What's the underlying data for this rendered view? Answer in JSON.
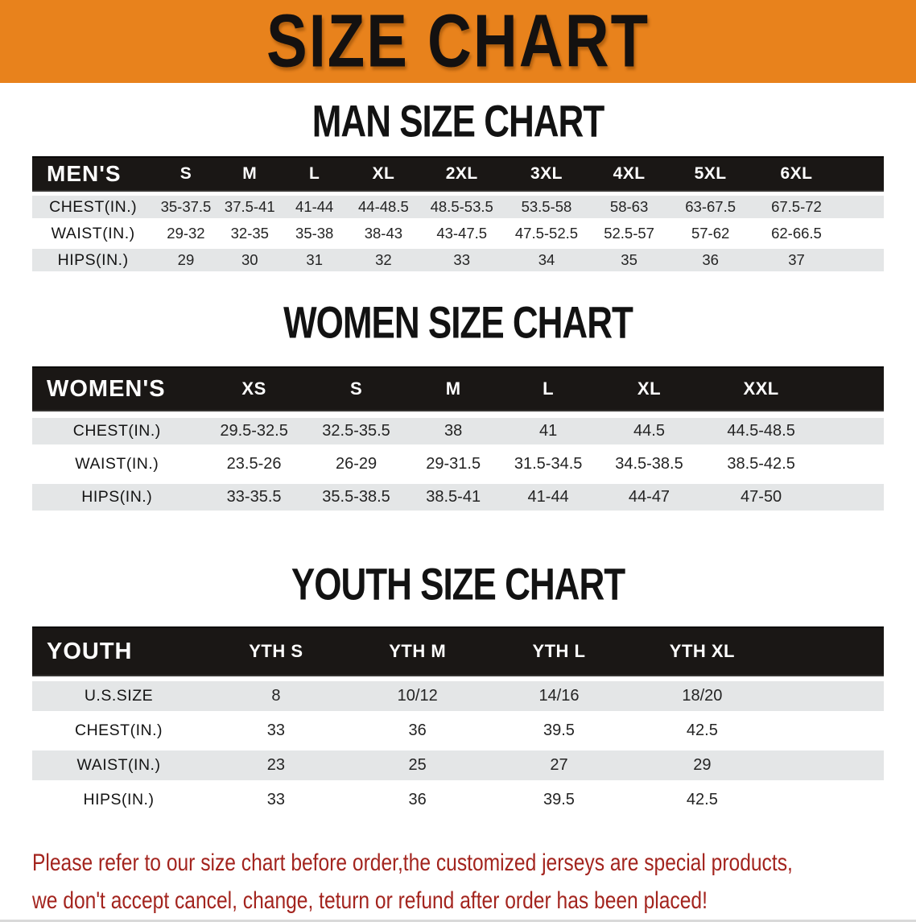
{
  "banner": {
    "title": "SIZE CHART"
  },
  "colors": {
    "banner_bg": "#E8821C",
    "table_header_bg": "#1A1715",
    "row_shade_bg": "#E4E6E7",
    "disclaimer_color": "#A3241E",
    "heading_color": "#121212"
  },
  "men": {
    "heading": "MAN SIZE CHART",
    "table": {
      "label": "MEN'S",
      "sizes": [
        "S",
        "M",
        "L",
        "XL",
        "2XL",
        "3XL",
        "4XL",
        "5XL",
        "6XL"
      ],
      "rows": [
        {
          "label": "CHEST(IN.)",
          "values": [
            "35-37.5",
            "37.5-41",
            "41-44",
            "44-48.5",
            "48.5-53.5",
            "53.5-58",
            "58-63",
            "63-67.5",
            "67.5-72"
          ]
        },
        {
          "label": "WAIST(IN.)",
          "values": [
            "29-32",
            "32-35",
            "35-38",
            "38-43",
            "43-47.5",
            "47.5-52.5",
            "52.5-57",
            "57-62",
            "62-66.5"
          ]
        },
        {
          "label": "HIPS(IN.)",
          "values": [
            "29",
            "30",
            "31",
            "32",
            "33",
            "34",
            "35",
            "36",
            "37"
          ]
        }
      ]
    }
  },
  "women": {
    "heading": "WOMEN SIZE CHART",
    "table": {
      "label": "WOMEN'S",
      "sizes": [
        "XS",
        "S",
        "M",
        "L",
        "XL",
        "XXL"
      ],
      "rows": [
        {
          "label": "CHEST(IN.)",
          "values": [
            "29.5-32.5",
            "32.5-35.5",
            "38",
            "41",
            "44.5",
            "44.5-48.5"
          ]
        },
        {
          "label": "WAIST(IN.)",
          "values": [
            "23.5-26",
            "26-29",
            "29-31.5",
            "31.5-34.5",
            "34.5-38.5",
            "38.5-42.5"
          ]
        },
        {
          "label": "HIPS(IN.)",
          "values": [
            "33-35.5",
            "35.5-38.5",
            "38.5-41",
            "41-44",
            "44-47",
            "47-50"
          ]
        }
      ]
    }
  },
  "youth": {
    "heading": "YOUTH SIZE CHART",
    "table": {
      "label": "YOUTH",
      "sizes": [
        "YTH S",
        "YTH M",
        "YTH L",
        "YTH XL"
      ],
      "rows": [
        {
          "label": "U.S.SIZE",
          "values": [
            "8",
            "10/12",
            "14/16",
            "18/20"
          ]
        },
        {
          "label": "CHEST(IN.)",
          "values": [
            "33",
            "36",
            "39.5",
            "42.5"
          ]
        },
        {
          "label": "WAIST(IN.)",
          "values": [
            "23",
            "25",
            "27",
            "29"
          ]
        },
        {
          "label": "HIPS(IN.)",
          "values": [
            "33",
            "36",
            "39.5",
            "42.5"
          ]
        }
      ]
    }
  },
  "disclaimer": {
    "line1": "Please refer to our size chart before order,the customized jerseys are special products,",
    "line2": "we don't accept cancel, change, teturn or refund after order has been placed!"
  }
}
